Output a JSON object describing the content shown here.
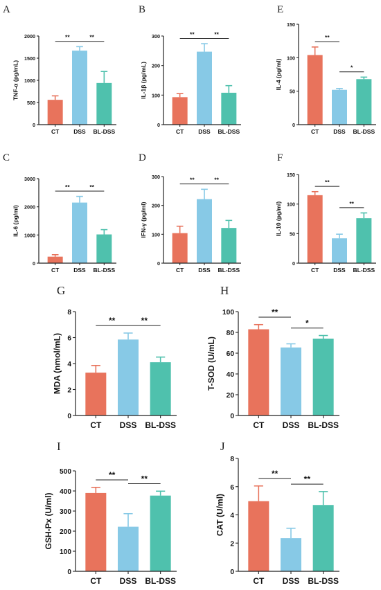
{
  "colors": {
    "CT": "#e8735c",
    "DSS": "#87c9e6",
    "BL-DSS": "#4fc1ad",
    "axis": "#222222"
  },
  "chart_data": [
    {
      "id": "A",
      "letter": "A",
      "type": "bar",
      "ylabel": "TNF-α (pg/mL)",
      "categories": [
        "CT",
        "DSS",
        "BL-DSS"
      ],
      "values": [
        560,
        1670,
        940
      ],
      "errors": [
        90,
        90,
        260
      ],
      "ylim": [
        0,
        2000
      ],
      "yticks": [
        0,
        500,
        1000,
        1500,
        2000
      ],
      "significance": [
        {
          "from": 0,
          "to": 1,
          "label": "**"
        },
        {
          "from": 1,
          "to": 2,
          "label": "**"
        }
      ]
    },
    {
      "id": "B",
      "letter": "B",
      "type": "bar",
      "ylabel": "IL-1β (pg/mL)",
      "categories": [
        "CT",
        "DSS",
        "BL-DSS"
      ],
      "values": [
        93,
        247,
        108
      ],
      "errors": [
        12,
        27,
        24
      ],
      "ylim": [
        0,
        300
      ],
      "yticks": [
        0,
        100,
        200,
        300
      ],
      "significance": [
        {
          "from": 0,
          "to": 1,
          "label": "**"
        },
        {
          "from": 1,
          "to": 2,
          "label": "**"
        }
      ]
    },
    {
      "id": "E",
      "letter": "E",
      "type": "bar",
      "ylabel": "IL-4 (pg/ml)",
      "categories": [
        "CT",
        "DSS",
        "BL-DSS"
      ],
      "values": [
        104,
        52,
        68
      ],
      "errors": [
        12,
        2,
        3
      ],
      "ylim": [
        0,
        150
      ],
      "yticks": [
        0,
        50,
        100,
        150
      ],
      "significance": [
        {
          "from": 0,
          "to": 1,
          "label": "**"
        },
        {
          "from": 1,
          "to": 2,
          "label": "*"
        }
      ]
    },
    {
      "id": "C",
      "letter": "C",
      "type": "bar",
      "ylabel": "IL-6 (pg/ml)",
      "categories": [
        "CT",
        "DSS",
        "BL-DSS"
      ],
      "values": [
        230,
        2150,
        1020
      ],
      "errors": [
        70,
        220,
        170
      ],
      "ylim": [
        0,
        3000
      ],
      "yticks": [
        0,
        1000,
        2000,
        3000
      ],
      "significance": [
        {
          "from": 0,
          "to": 1,
          "label": "**"
        },
        {
          "from": 1,
          "to": 2,
          "label": "**"
        }
      ]
    },
    {
      "id": "D",
      "letter": "D",
      "type": "bar",
      "ylabel": "IFN-γ (pg/ml)",
      "categories": [
        "CT",
        "DSS",
        "BL-DSS"
      ],
      "values": [
        104,
        222,
        122
      ],
      "errors": [
        24,
        34,
        26
      ],
      "ylim": [
        0,
        300
      ],
      "yticks": [
        0,
        100,
        200,
        300
      ],
      "significance": [
        {
          "from": 0,
          "to": 1,
          "label": "**"
        },
        {
          "from": 1,
          "to": 2,
          "label": "**"
        }
      ]
    },
    {
      "id": "F",
      "letter": "F",
      "type": "bar",
      "ylabel": "IL-10 (pg/ml)",
      "categories": [
        "CT",
        "DSS",
        "BL-DSS"
      ],
      "values": [
        115,
        42,
        76
      ],
      "errors": [
        6,
        7,
        9
      ],
      "ylim": [
        0,
        150
      ],
      "yticks": [
        0,
        50,
        100,
        150
      ],
      "significance": [
        {
          "from": 0,
          "to": 1,
          "label": "**"
        },
        {
          "from": 1,
          "to": 2,
          "label": "**"
        }
      ]
    },
    {
      "id": "G",
      "letter": "G",
      "type": "bar",
      "ylabel": "MDA (nmol/mL)",
      "categories": [
        "CT",
        "DSS",
        "BL-DSS"
      ],
      "values": [
        3.3,
        5.85,
        4.1
      ],
      "errors": [
        0.55,
        0.5,
        0.4
      ],
      "ylim": [
        0,
        8
      ],
      "yticks": [
        0,
        2,
        4,
        6,
        8
      ],
      "significance": [
        {
          "from": 0,
          "to": 1,
          "label": "**"
        },
        {
          "from": 1,
          "to": 2,
          "label": "**"
        }
      ]
    },
    {
      "id": "H",
      "letter": "H",
      "type": "bar",
      "ylabel": "T-SOD (U/mL)",
      "categories": [
        "CT",
        "DSS",
        "BL-DSS"
      ],
      "values": [
        83,
        65.5,
        74
      ],
      "errors": [
        4.5,
        3.5,
        3
      ],
      "ylim": [
        0,
        100
      ],
      "yticks": [
        0,
        20,
        40,
        60,
        80,
        100
      ],
      "significance": [
        {
          "from": 0,
          "to": 1,
          "label": "**"
        },
        {
          "from": 1,
          "to": 2,
          "label": "*"
        }
      ]
    },
    {
      "id": "I",
      "letter": "I",
      "type": "bar",
      "ylabel": "GSH-Px (U/ml)",
      "categories": [
        "CT",
        "DSS",
        "BL-DSS"
      ],
      "values": [
        390,
        222,
        377
      ],
      "errors": [
        28,
        65,
        22
      ],
      "ylim": [
        0,
        500
      ],
      "yticks": [
        0,
        100,
        200,
        300,
        400,
        500
      ],
      "significance": [
        {
          "from": 0,
          "to": 1,
          "label": "**"
        },
        {
          "from": 1,
          "to": 2,
          "label": "**"
        }
      ]
    },
    {
      "id": "J",
      "letter": "J",
      "type": "bar",
      "ylabel": "CAT (U/ml)",
      "categories": [
        "CT",
        "DSS",
        "BL-DSS"
      ],
      "values": [
        4.97,
        2.35,
        4.7
      ],
      "errors": [
        1.08,
        0.7,
        0.95
      ],
      "ylim": [
        0,
        8
      ],
      "yticks": [
        0,
        2,
        4,
        6,
        8
      ],
      "significance": [
        {
          "from": 0,
          "to": 1,
          "label": "**"
        },
        {
          "from": 1,
          "to": 2,
          "label": "**"
        }
      ]
    }
  ]
}
